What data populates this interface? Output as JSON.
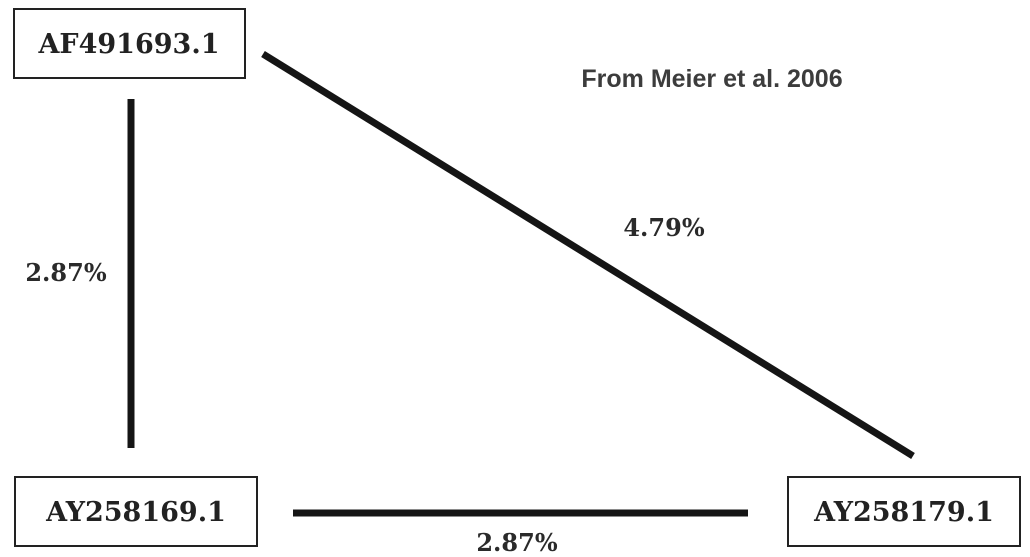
{
  "source_note": "From Meier et al. 2006",
  "nodes": {
    "top_left": {
      "label": "AF491693.1"
    },
    "bottom_left": {
      "label": "AY258169.1"
    },
    "bottom_right": {
      "label": "AY258179.1"
    }
  },
  "edges": {
    "left_vertical": {
      "from": "AF491693.1",
      "to": "AY258169.1",
      "label": "2.87%"
    },
    "bottom_horizontal": {
      "from": "AY258169.1",
      "to": "AY258179.1",
      "label": "2.87%"
    },
    "diagonal": {
      "from": "AF491693.1",
      "to": "AY258179.1",
      "label": "4.79%"
    }
  },
  "colors": {
    "line": "#151515",
    "text": "#222222",
    "note": "#3c3c3c",
    "background": "#ffffff"
  }
}
